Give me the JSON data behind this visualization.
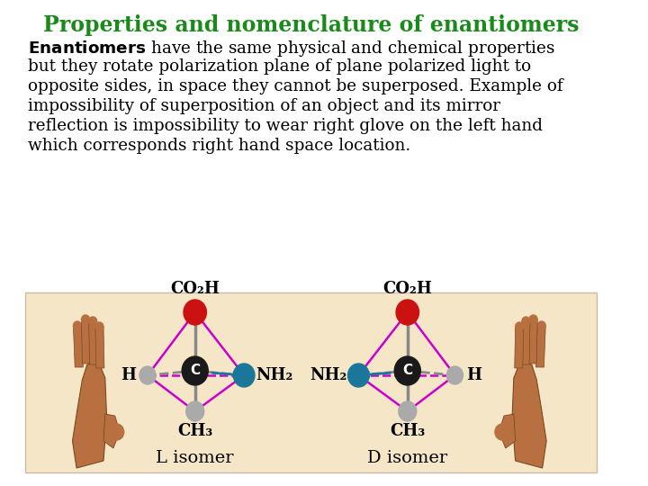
{
  "title": "Properties and nomenclature of enantiomers",
  "title_color": "#1a8a1a",
  "title_fontsize": 17,
  "body_fontsize": 13.2,
  "background_color": "#ffffff",
  "image_panel_color": "#f5e6c8",
  "image_panel_border": "#ccbbaa",
  "label_L": "L isomer",
  "label_D": "D isomer",
  "co2h_label": "CO₂H",
  "ch3_label": "CH₃",
  "nh2_label": "NH₂",
  "h_label": "H",
  "c_label": "C",
  "atom_red_color": "#cc1111",
  "atom_dark_color": "#1a1a1a",
  "atom_teal_color": "#1a7799",
  "atom_grey_color": "#aaaaaa",
  "bond_magenta": "#cc00cc",
  "bond_grey": "#888888",
  "label_fontsize": 13,
  "isomer_label_fontsize": 14,
  "hand_color": "#b87040",
  "hand_edge": "#7a4820",
  "lines": [
    "$\\bf{Enantiomers}$ have the same physical and chemical properties",
    "but they rotate polarization plane of plane polarized light to",
    "opposite sides, in space they cannot be superposed. Example of",
    "impossibility of superposition of an object and its mirror",
    "reflection is impossibility to wear right glove on the left hand",
    "which corresponds right hand space location."
  ]
}
